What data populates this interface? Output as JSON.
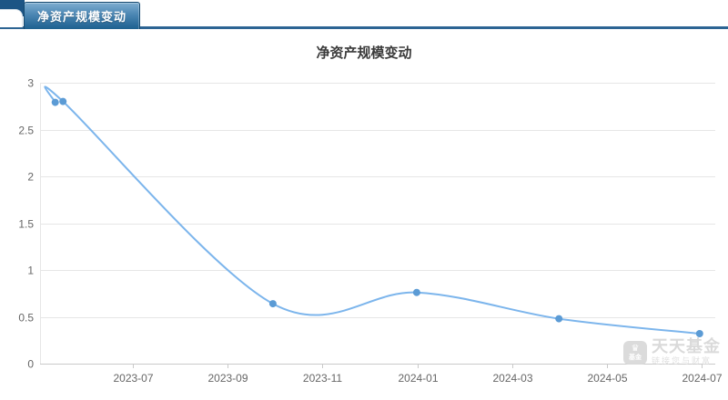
{
  "tabbar": {
    "active_tab": "净资产规模变动",
    "colors": {
      "bar_line": "#2c6493",
      "tab_gradient_top": "#7fadd0",
      "tab_gradient_bottom": "#1d608f",
      "tab_border": "#15496f",
      "corner_dark": "#1d5585"
    }
  },
  "chart_data": {
    "type": "line",
    "title": "净资产规模变动",
    "x_ticks": [
      "2023-07",
      "2023-09",
      "2023-11",
      "2024-01",
      "2024-03",
      "2024-05",
      "2024-07"
    ],
    "y_ticks": [
      0,
      0.5,
      1,
      1.5,
      2,
      2.5,
      3
    ],
    "ylim": [
      0,
      3
    ],
    "grid": true,
    "legend": "none",
    "line_color": "#7cb5ec",
    "marker_color": "#5b9bd5",
    "axis_label_color": "#666666",
    "grid_color": "#e6e6e6",
    "points": [
      {
        "date": "2023-05-12",
        "value": 2.79
      },
      {
        "date": "2023-05-17",
        "value": 2.8
      },
      {
        "date": "2023-09-30",
        "value": 0.64
      },
      {
        "date": "2023-12-31",
        "value": 0.76
      },
      {
        "date": "2024-03-31",
        "value": 0.48
      },
      {
        "date": "2024-06-30",
        "value": 0.32
      }
    ]
  },
  "watermark": {
    "brand": "天天基金",
    "slogan": "链接您与财富",
    "logo_label": "基金",
    "color": "#d9d9d9"
  }
}
